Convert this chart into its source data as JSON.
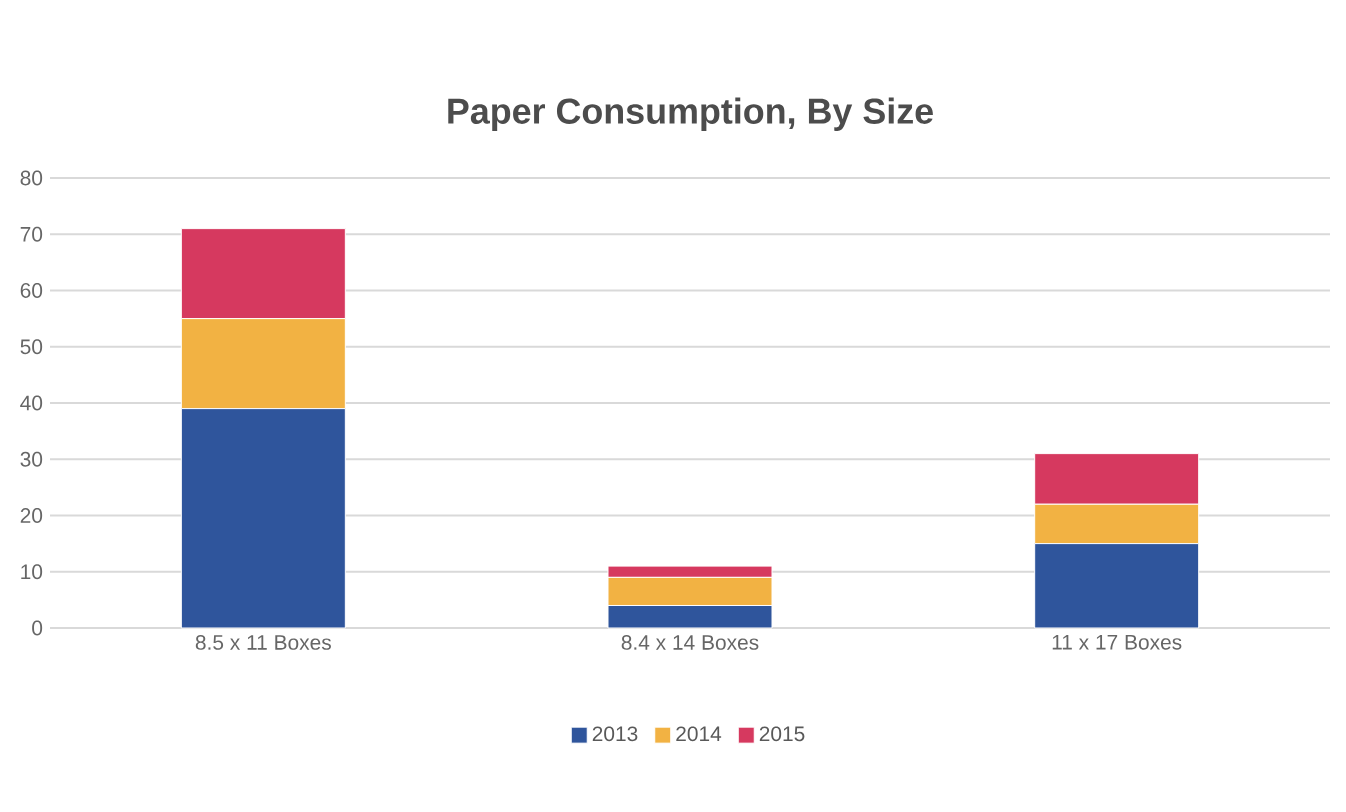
{
  "chart_data": {
    "type": "bar",
    "title": "Paper Consumption, By Size",
    "stacked": true,
    "categories": [
      "8.5 x 11 Boxes",
      "8.4 x 14 Boxes",
      "11 x 17 Boxes"
    ],
    "series": [
      {
        "name": "2013",
        "color": "#2f559c",
        "values": [
          39,
          4,
          15
        ]
      },
      {
        "name": "2014",
        "color": "#f2b243",
        "values": [
          16,
          5,
          7
        ]
      },
      {
        "name": "2015",
        "color": "#d6395f",
        "values": [
          16,
          2,
          9
        ]
      }
    ],
    "ylim": [
      0,
      80
    ],
    "yticks": [
      0,
      10,
      20,
      30,
      40,
      50,
      60,
      70,
      80
    ],
    "grid": "y",
    "legend": "bottom"
  }
}
